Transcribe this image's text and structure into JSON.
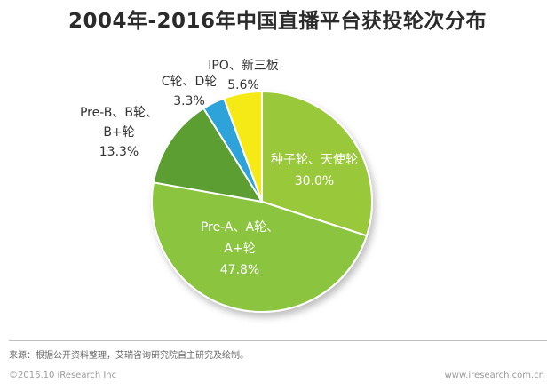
{
  "title": "2004年-2016年中国直播平台获投轮次分布",
  "chart_data": {
    "type": "pie",
    "title": "2004年-2016年中国直播平台获投轮次分布",
    "slices": [
      {
        "label_lines": [
          "种子轮、天使轮"
        ],
        "value": 30.0,
        "value_label": "30.0%",
        "color": "#99c93a",
        "label_color": "#ffffff",
        "label_position": "inside"
      },
      {
        "label_lines": [
          "Pre-A、A轮、",
          "A+轮"
        ],
        "value": 47.8,
        "value_label": "47.8%",
        "color": "#8bc53f",
        "label_color": "#ffffff",
        "label_position": "inside"
      },
      {
        "label_lines": [
          "Pre-B、B轮、",
          "B+轮"
        ],
        "value": 13.3,
        "value_label": "13.3%",
        "color": "#5c9e31",
        "label_color": "#333333",
        "label_position": "outside"
      },
      {
        "label_lines": [
          "C轮、D轮"
        ],
        "value": 3.3,
        "value_label": "3.3%",
        "color": "#2ea3d9",
        "label_color": "#333333",
        "label_position": "outside"
      },
      {
        "label_lines": [
          "IPO、新三板"
        ],
        "value": 5.6,
        "value_label": "5.6%",
        "color": "#f5ea14",
        "label_color": "#333333",
        "label_position": "outside"
      }
    ]
  },
  "footer": {
    "source": "来源：根据公开资料整理，艾瑞咨询研究院自主研究及绘制。",
    "copyright": "©2016.10 iResearch Inc",
    "website": "www.iresearch.com.cn"
  }
}
